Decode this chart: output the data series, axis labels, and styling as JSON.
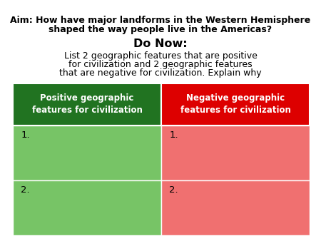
{
  "background_color": "#ffffff",
  "aim_text_line1": "Aim: How have major landforms in the Western Hemisphere",
  "aim_text_line2": "shaped the way people live in the Americas?",
  "donow_label": "Do Now:",
  "donow_body_line1": "List 2 geographic features that are positive",
  "donow_body_line2": "for civilization and 2 geographic features",
  "donow_body_line3": "that are negative for civilization. Explain why",
  "col1_header": "Positive geographic\nfeatures for civilization",
  "col2_header": "Negative geographic\nfeatures for civilization",
  "col1_header_bg": "#217321",
  "col2_header_bg": "#dd0000",
  "col1_body_bg": "#77c466",
  "col2_body_bg": "#f07070",
  "header_text_color": "#ffffff",
  "body_text_color": "#000000",
  "row_labels": [
    "1.",
    "2."
  ]
}
